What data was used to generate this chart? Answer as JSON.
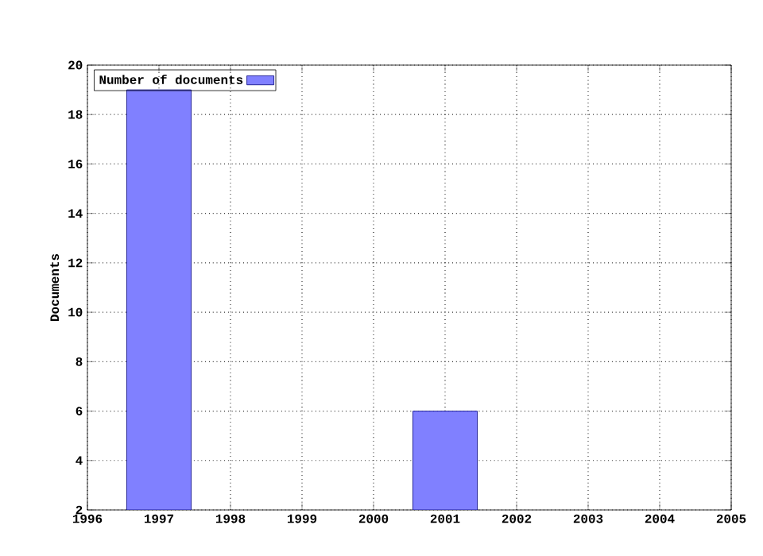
{
  "chart_data": {
    "type": "bar",
    "ylabel": "Documents",
    "x": [
      1997,
      2001
    ],
    "series": [
      {
        "name": "Number of documents",
        "color": "#8080ff",
        "values": [
          19,
          6
        ]
      }
    ],
    "xlim": [
      1996,
      2005
    ],
    "xticks": [
      1996,
      1997,
      1998,
      1999,
      2000,
      2001,
      2002,
      2003,
      2004,
      2005
    ],
    "ylim": [
      2,
      20
    ],
    "yticks": [
      2,
      4,
      6,
      8,
      10,
      12,
      14,
      16,
      18,
      20
    ],
    "grid": true,
    "legend": "top left"
  }
}
